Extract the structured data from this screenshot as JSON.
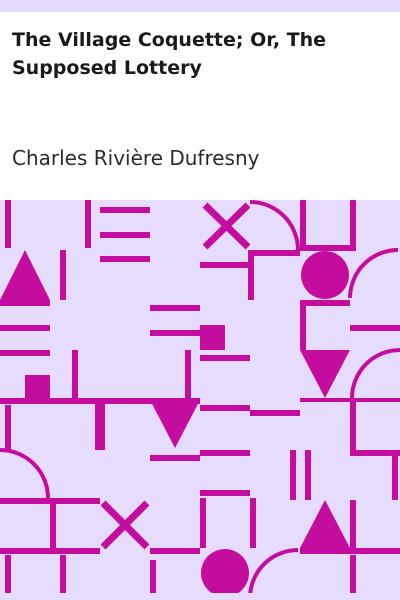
{
  "book": {
    "title": "The Village Coquette; Or, The Supposed Lottery",
    "author": "Charles Rivière Dufresny"
  },
  "colors": {
    "pattern_background": "#e6dcff",
    "pattern_ink": "#c40c9f",
    "band": "#e6dcff"
  }
}
